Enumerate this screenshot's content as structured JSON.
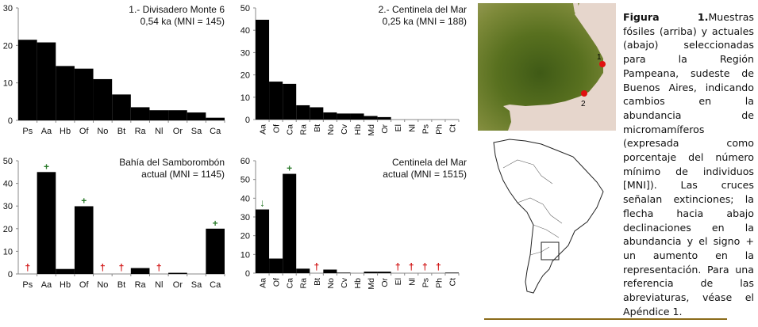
{
  "chart_data": [
    {
      "type": "bar",
      "title": [
        "1.- Divisadero Monte 6",
        "0,54 ka (MNI = 145)"
      ],
      "categories": [
        "Ps",
        "Aa",
        "Hb",
        "Of",
        "No",
        "Bt",
        "Ra",
        "Nl",
        "Or",
        "Sa",
        "Ca"
      ],
      "values": [
        21.5,
        20.8,
        14.5,
        13.8,
        11,
        6.9,
        3.5,
        2.7,
        2.7,
        2.1,
        0.7
      ],
      "markers": [
        null,
        null,
        null,
        null,
        null,
        null,
        null,
        null,
        null,
        null,
        null
      ],
      "ylim": [
        0,
        30
      ],
      "yticks": [
        0,
        10,
        20,
        30
      ],
      "rotate_labels": false
    },
    {
      "type": "bar",
      "title": [
        "2.- Centinela del Mar",
        "0,25 ka (MNI = 188)"
      ],
      "categories": [
        "Aa",
        "Of",
        "Ca",
        "Ra",
        "Bt",
        "No",
        "Cv",
        "Hb",
        "Md",
        "Or",
        "El",
        "Nl",
        "Ps",
        "Ph",
        "Ct"
      ],
      "values": [
        44.7,
        17,
        16,
        6.4,
        5.5,
        3.2,
        2.7,
        2.7,
        1.6,
        1.1,
        0,
        0,
        0,
        0,
        0
      ],
      "markers": [
        null,
        null,
        null,
        null,
        null,
        null,
        null,
        null,
        null,
        null,
        null,
        null,
        null,
        null,
        null
      ],
      "ylim": [
        0,
        50
      ],
      "yticks": [
        0,
        10,
        20,
        30,
        40,
        50
      ],
      "rotate_labels": true
    },
    {
      "type": "bar",
      "title": [
        "Bahía del Samborombón",
        "actual (MNI = 1145)"
      ],
      "categories": [
        "Ps",
        "Aa",
        "Hb",
        "Of",
        "No",
        "Bt",
        "Ra",
        "Nl",
        "Or",
        "Sa",
        "Ca"
      ],
      "values": [
        0,
        45,
        2.2,
        29.9,
        0,
        0,
        2.6,
        0,
        0.5,
        0,
        20
      ],
      "markers": [
        "†",
        "+",
        null,
        "+",
        "†",
        "†",
        null,
        "†",
        null,
        null,
        "+"
      ],
      "ylim": [
        0,
        50
      ],
      "yticks": [
        0,
        10,
        20,
        30,
        40,
        50
      ],
      "rotate_labels": false
    },
    {
      "type": "bar",
      "title": [
        "Centinela del Mar",
        "actual (MNI = 1515)"
      ],
      "categories": [
        "Aa",
        "Of",
        "Ca",
        "Ra",
        "Bt",
        "No",
        "Cv",
        "Hb",
        "Md",
        "Or",
        "El",
        "Nl",
        "Ps",
        "Ph",
        "Ct"
      ],
      "values": [
        34,
        7.8,
        53,
        2.4,
        0,
        1.9,
        0.3,
        0,
        0.8,
        0.8,
        0,
        0,
        0,
        0,
        0.3
      ],
      "markers": [
        "↓",
        null,
        "+",
        null,
        "†",
        null,
        null,
        null,
        null,
        null,
        "†",
        "†",
        "†",
        "†",
        null
      ],
      "ylim": [
        0,
        60
      ],
      "yticks": [
        0,
        10,
        20,
        30,
        40,
        50,
        60
      ],
      "rotate_labels": true
    }
  ],
  "colors": {
    "bar": "#000000",
    "extinction": "#d01010",
    "increase": "#2a7a2a",
    "rule": "#8b6b1a",
    "site_marker": "#e01010"
  },
  "map": {
    "site_labels": [
      "1",
      "2"
    ]
  },
  "caption": {
    "label": "Figura 1.",
    "text": "Muestras fósiles (arriba) y actuales (abajo) seleccionadas para la Región Pampeana, sudeste de Buenos Aires, indicando cambios en la abundancia de micromamíferos (expresada como porcentaje del número mínimo de individuos [MNI]). Las cruces señalan extinciones; la flecha hacia abajo declinaciones en la abundancia y el signo + un aumento en la representación. Para una referencia de las abreviaturas, véase el Apéndice 1."
  }
}
